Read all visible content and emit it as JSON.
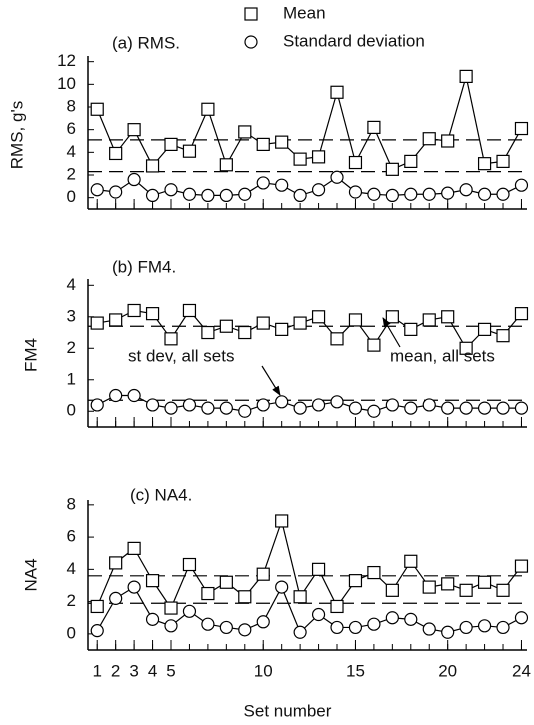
{
  "chart_data": [
    {
      "type": "line",
      "title": "(a) RMS.",
      "ylabel": "RMS, g's",
      "x": [
        1,
        2,
        3,
        4,
        5,
        6,
        7,
        8,
        9,
        10,
        11,
        12,
        13,
        14,
        15,
        16,
        17,
        18,
        19,
        20,
        21,
        22,
        23,
        24
      ],
      "series": [
        {
          "name": "Mean",
          "color": "#000000",
          "marker": "square",
          "values": [
            7.8,
            3.9,
            6.0,
            2.8,
            4.7,
            4.1,
            7.8,
            2.9,
            5.8,
            4.7,
            4.9,
            3.4,
            3.6,
            9.3,
            3.1,
            6.2,
            2.5,
            3.2,
            5.2,
            5.0,
            10.7,
            3.0,
            3.2,
            6.1
          ]
        },
        {
          "name": "Standard deviation",
          "color": "#000000",
          "marker": "circle",
          "values": [
            0.7,
            0.5,
            1.6,
            0.2,
            0.7,
            0.3,
            0.2,
            0.2,
            0.3,
            1.3,
            1.1,
            0.2,
            0.7,
            1.8,
            0.5,
            0.3,
            0.2,
            0.3,
            0.3,
            0.4,
            0.7,
            0.3,
            0.3,
            1.1
          ]
        }
      ],
      "reference_lines": [
        5.1,
        2.3
      ],
      "xlim": [
        0.5,
        24.3
      ],
      "xticks": [
        1,
        2,
        3,
        4,
        5,
        10,
        15,
        20,
        24
      ],
      "ylim": [
        -1,
        12.5
      ],
      "yticks": [
        0,
        2,
        4,
        6,
        8,
        10,
        12
      ],
      "legend": "top-right"
    },
    {
      "type": "line",
      "title": "(b) FM4.",
      "ylabel": "FM4",
      "x": [
        1,
        2,
        3,
        4,
        5,
        6,
        7,
        8,
        9,
        10,
        11,
        12,
        13,
        14,
        15,
        16,
        17,
        18,
        19,
        20,
        21,
        22,
        23,
        24
      ],
      "series": [
        {
          "color": "#000000",
          "marker": "square",
          "values": [
            2.8,
            2.9,
            3.2,
            3.1,
            2.3,
            3.2,
            2.5,
            2.7,
            2.5,
            2.8,
            2.6,
            2.8,
            3.0,
            2.3,
            2.9,
            2.1,
            3.0,
            2.6,
            2.9,
            3.0,
            2.0,
            2.6,
            2.4,
            3.1
          ]
        },
        {
          "color": "#000000",
          "marker": "circle",
          "values": [
            0.2,
            0.5,
            0.5,
            0.2,
            0.1,
            0.2,
            0.1,
            0.1,
            0.0,
            0.2,
            0.3,
            0.1,
            0.2,
            0.3,
            0.1,
            0.0,
            0.2,
            0.1,
            0.2,
            0.1,
            0.1,
            0.1,
            0.1,
            0.1
          ]
        }
      ],
      "reference_lines": [
        2.7,
        0.35
      ],
      "annotations": [
        "st dev, all sets",
        "mean, all sets"
      ],
      "xlim": [
        0.5,
        24.3
      ],
      "xticks": [
        1,
        2,
        3,
        4,
        5,
        10,
        15,
        20,
        24
      ],
      "ylim": [
        -0.5,
        4.2
      ],
      "yticks": [
        0,
        1,
        2,
        3,
        4
      ]
    },
    {
      "type": "line",
      "title": "(c) NA4.",
      "ylabel": "NA4",
      "xlabel": "Set number",
      "x": [
        1,
        2,
        3,
        4,
        5,
        6,
        7,
        8,
        9,
        10,
        11,
        12,
        13,
        14,
        15,
        16,
        17,
        18,
        19,
        20,
        21,
        22,
        23,
        24
      ],
      "series": [
        {
          "color": "#000000",
          "marker": "square",
          "values": [
            1.7,
            4.4,
            5.3,
            3.3,
            1.6,
            4.3,
            2.5,
            3.2,
            2.3,
            3.7,
            7.0,
            2.3,
            4.0,
            1.7,
            3.3,
            3.8,
            2.7,
            4.5,
            2.9,
            3.1,
            2.7,
            3.2,
            2.7,
            4.2
          ]
        },
        {
          "color": "#000000",
          "marker": "circle",
          "values": [
            0.2,
            2.2,
            2.9,
            0.9,
            0.5,
            1.4,
            0.6,
            0.4,
            0.25,
            0.75,
            2.9,
            0.1,
            1.2,
            0.4,
            0.4,
            0.6,
            1.0,
            0.9,
            0.3,
            0.1,
            0.4,
            0.5,
            0.4,
            1.0
          ]
        }
      ],
      "reference_lines": [
        3.6,
        1.9
      ],
      "xlim": [
        0.5,
        24.3
      ],
      "xticks": [
        1,
        2,
        3,
        4,
        5,
        10,
        15,
        20,
        24
      ],
      "ylim": [
        -1,
        8.3
      ],
      "yticks": [
        0,
        2,
        4,
        6,
        8
      ]
    }
  ]
}
